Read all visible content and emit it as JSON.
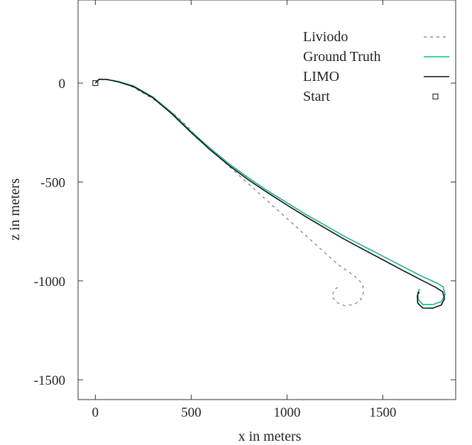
{
  "chart_data": {
    "type": "line",
    "title": "",
    "xlabel": "x in meters",
    "ylabel": "z in meters",
    "xlim": [
      -90,
      1880
    ],
    "ylim": [
      -1600,
      420
    ],
    "xticks": [
      0,
      500,
      1000,
      1500
    ],
    "yticks": [
      0,
      -500,
      -1000,
      -1500
    ],
    "grid": false,
    "legend_position": "top-right",
    "series": [
      {
        "name": "Liviodo",
        "color": "#8c8c8c",
        "style": "dashed",
        "points": [
          [
            0,
            0
          ],
          [
            20,
            18
          ],
          [
            60,
            20
          ],
          [
            120,
            8
          ],
          [
            180,
            -12
          ],
          [
            240,
            -45
          ],
          [
            300,
            -80
          ],
          [
            360,
            -120
          ],
          [
            420,
            -165
          ],
          [
            460,
            -200
          ],
          [
            500,
            -240
          ],
          [
            560,
            -300
          ],
          [
            640,
            -370
          ],
          [
            720,
            -440
          ],
          [
            800,
            -510
          ],
          [
            880,
            -580
          ],
          [
            960,
            -650
          ],
          [
            1040,
            -720
          ],
          [
            1120,
            -790
          ],
          [
            1200,
            -860
          ],
          [
            1270,
            -920
          ],
          [
            1330,
            -960
          ],
          [
            1370,
            -990
          ],
          [
            1395,
            -1020
          ],
          [
            1400,
            -1055
          ],
          [
            1385,
            -1095
          ],
          [
            1350,
            -1120
          ],
          [
            1300,
            -1125
          ],
          [
            1260,
            -1110
          ],
          [
            1235,
            -1080
          ],
          [
            1245,
            -1045
          ],
          [
            1270,
            -1030
          ]
        ]
      },
      {
        "name": "Ground Truth",
        "color": "#19b38c",
        "style": "solid",
        "points": [
          [
            0,
            0
          ],
          [
            20,
            18
          ],
          [
            60,
            18
          ],
          [
            120,
            8
          ],
          [
            200,
            -15
          ],
          [
            300,
            -70
          ],
          [
            400,
            -150
          ],
          [
            500,
            -245
          ],
          [
            600,
            -330
          ],
          [
            700,
            -410
          ],
          [
            800,
            -480
          ],
          [
            900,
            -545
          ],
          [
            1000,
            -605
          ],
          [
            1100,
            -665
          ],
          [
            1200,
            -720
          ],
          [
            1300,
            -775
          ],
          [
            1400,
            -825
          ],
          [
            1500,
            -875
          ],
          [
            1600,
            -925
          ],
          [
            1700,
            -975
          ],
          [
            1780,
            -1010
          ],
          [
            1815,
            -1030
          ],
          [
            1825,
            -1070
          ],
          [
            1805,
            -1105
          ],
          [
            1760,
            -1120
          ],
          [
            1710,
            -1120
          ],
          [
            1685,
            -1095
          ],
          [
            1682,
            -1060
          ],
          [
            1692,
            -1040
          ]
        ]
      },
      {
        "name": "LIMO",
        "color": "#111111",
        "style": "solid",
        "points": [
          [
            0,
            0
          ],
          [
            20,
            20
          ],
          [
            60,
            18
          ],
          [
            120,
            6
          ],
          [
            200,
            -18
          ],
          [
            300,
            -74
          ],
          [
            400,
            -156
          ],
          [
            500,
            -250
          ],
          [
            600,
            -338
          ],
          [
            700,
            -418
          ],
          [
            800,
            -490
          ],
          [
            900,
            -555
          ],
          [
            1000,
            -617
          ],
          [
            1100,
            -677
          ],
          [
            1200,
            -734
          ],
          [
            1300,
            -790
          ],
          [
            1400,
            -842
          ],
          [
            1500,
            -893
          ],
          [
            1600,
            -945
          ],
          [
            1700,
            -995
          ],
          [
            1775,
            -1032
          ],
          [
            1812,
            -1055
          ],
          [
            1822,
            -1090
          ],
          [
            1805,
            -1122
          ],
          [
            1760,
            -1138
          ],
          [
            1708,
            -1137
          ],
          [
            1682,
            -1112
          ],
          [
            1680,
            -1075
          ],
          [
            1690,
            -1055
          ]
        ]
      },
      {
        "name": "Start",
        "color": "#333333",
        "style": "marker-square",
        "points": [
          [
            0,
            0
          ]
        ]
      }
    ]
  }
}
